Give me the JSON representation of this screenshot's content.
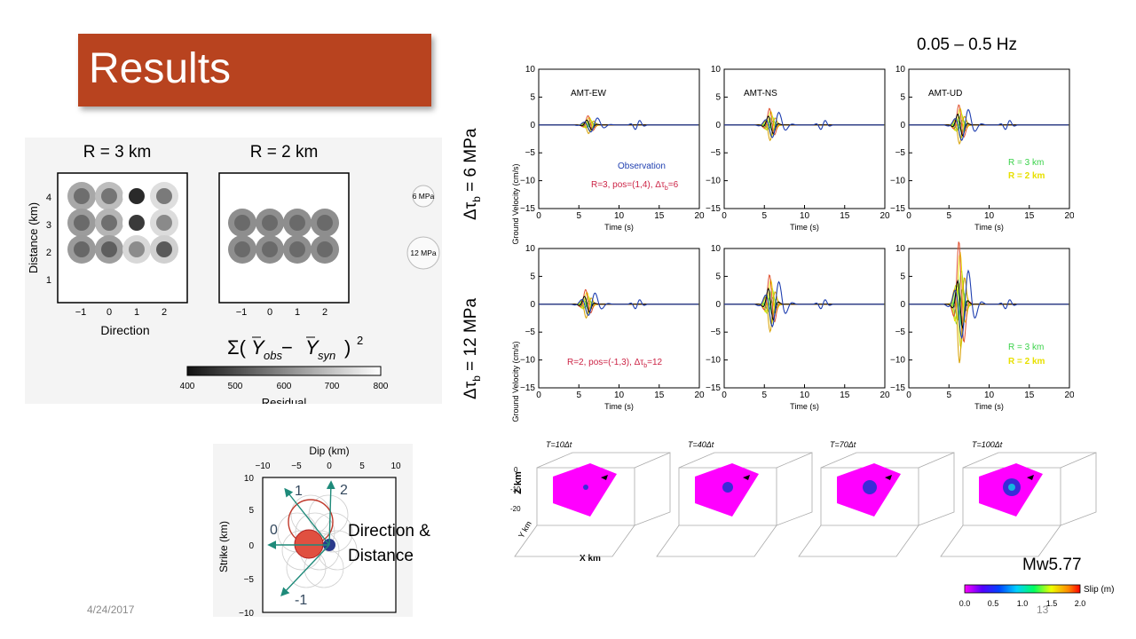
{
  "slide": {
    "title": "Results",
    "date": "4/24/2017",
    "page_number": "13",
    "frequency_band": "0.05 – 0.5 Hz",
    "magnitude": "Mw5.77"
  },
  "residual_panel": {
    "left_title": "R = 3 km",
    "right_title": "R = 2 km",
    "ylabel": "Distance (km)",
    "xlabel": "Direction",
    "x_ticks": [
      "−1",
      "0",
      "1",
      "2"
    ],
    "y_ticks": [
      "1",
      "2",
      "3",
      "4"
    ],
    "legend_6": "6 MPa",
    "legend_12": "12 MPa",
    "formula_sum": "Σ(",
    "formula_Y": "Y",
    "formula_obs": "obs",
    "formula_minus": " − ",
    "formula_syn": "syn",
    "formula_close": ")",
    "formula_sq": "2",
    "colorbar_ticks": [
      "400",
      "500",
      "600",
      "700",
      "800"
    ],
    "colorbar_label": "Residual"
  },
  "fault_panel": {
    "top_label": "Dip (km)",
    "side_label": "Strike (km)",
    "x_ticks": [
      "−10",
      "−5",
      "0",
      "5",
      "10"
    ],
    "y_ticks": [
      "10",
      "5",
      "0",
      "−5",
      "−10"
    ],
    "dir_1": "1",
    "dir_2": "2",
    "dir_0": "0",
    "dir_m1": "-1",
    "caption_line1": "Direction &",
    "caption_line2": "Distance"
  },
  "waveforms": {
    "row1_label_prefix": "Δτ",
    "row1_label_sub": "b",
    "row1_label_suffix": " = 6 MPa",
    "row2_label_prefix": "Δτ",
    "row2_label_sub": "b",
    "row2_label_suffix": " = 12 MPa",
    "ylabel": "Ground Velocity (cm/s)",
    "xlabel": "Time (s)",
    "y_ticks": [
      "10",
      "5",
      "0",
      "−5",
      "−10",
      "−15"
    ],
    "x_ticks": [
      "0",
      "5",
      "10",
      "15",
      "20"
    ],
    "panel_titles": [
      "AMT-EW",
      "AMT-NS",
      "AMT-UD"
    ],
    "observation_label": "Observation",
    "row1_param": "R=3, pos=(1,4), Δτ",
    "row1_param_sub": "b",
    "row1_param_end": "=6",
    "row2_param": "R=2, pos=(-1,3), Δτ",
    "row2_param_sub": "b",
    "row2_param_end": "=12",
    "legend_r3": "R = 3 km",
    "legend_r2": "R = 2 km"
  },
  "rupture": {
    "time_labels": [
      "T=10Δt",
      "T=40Δt",
      "T=70Δt",
      "T=100Δt"
    ],
    "z_label": "Z km",
    "x_label": "X km",
    "y_label": "Y km",
    "slip_label": "Slip (m)",
    "slip_ticks": [
      "0.0",
      "0.5",
      "1.0",
      "1.5",
      "2.0"
    ]
  },
  "colors": {
    "title_bar": "#b8431f",
    "observation": "#1f3fb0",
    "synthetic_green": "#2ecc40",
    "synthetic_yellow": "#e8e000",
    "param_text": "#cc2244",
    "fault_plane": "#ff00ff"
  }
}
